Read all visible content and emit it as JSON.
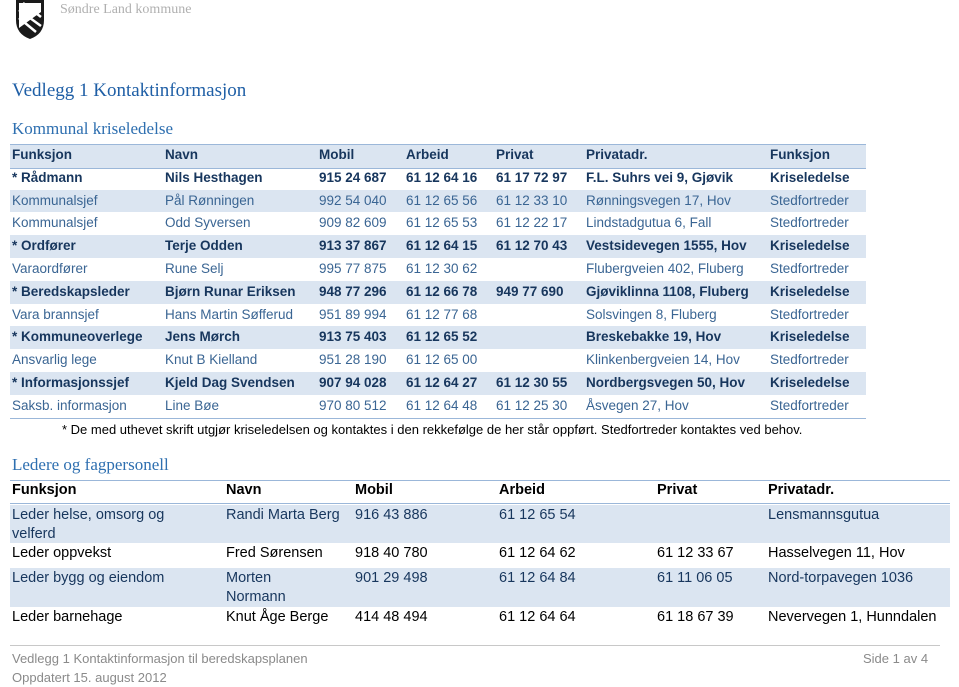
{
  "header": {
    "org": "Søndre Land kommune"
  },
  "title": "Vedlegg 1 Kontaktinformasjon",
  "crisis": {
    "heading": "Kommunal kriseledelse",
    "columns": [
      "Funksjon",
      "Navn",
      "Mobil",
      "Arbeid",
      "Privat",
      "Privatadr.",
      "Funksjon"
    ],
    "rows": [
      [
        "* Rådmann",
        "Nils Hesthagen",
        "915 24 687",
        "61 12 64 16",
        "61 17 72 97",
        "F.L. Suhrs vei 9, Gjøvik",
        "Kriseledelse"
      ],
      [
        "Kommunalsjef",
        "Pål Rønningen",
        "992 54 040",
        "61 12 65 56",
        "61 12 33 10",
        "Rønningsvegen 17, Hov",
        "Stedfortreder"
      ],
      [
        "Kommunalsjef",
        "Odd Syversen",
        "909 82 609",
        "61 12 65 53",
        "61 12 22 17",
        "Lindstadgutua 6, Fall",
        "Stedfortreder"
      ],
      [
        "* Ordfører",
        "Terje Odden",
        "913 37 867",
        "61 12 64 15",
        "61 12 70 43",
        "Vestsidevegen 1555, Hov",
        "Kriseledelse"
      ],
      [
        "Varaordfører",
        "Rune Selj",
        "995 77 875",
        "61 12 30 62",
        null,
        "Flubergveien 402, Fluberg",
        "Stedfortreder"
      ],
      [
        "* Beredskapsleder",
        "Bjørn Runar Eriksen",
        "948 77 296",
        "61 12 66 78",
        "949 77 690",
        "Gjøviklinna 1108, Fluberg",
        "Kriseledelse"
      ],
      [
        "Vara brannsjef",
        "Hans Martin Søfferud",
        "951 89 994",
        "61 12 77 68",
        null,
        "Solsvingen 8, Fluberg",
        "Stedfortreder"
      ],
      [
        "* Kommuneoverlege",
        "Jens Mørch",
        "913 75 403",
        "61 12 65 52",
        null,
        "Breskebakke 19, Hov",
        "Kriseledelse"
      ],
      [
        "Ansvarlig lege",
        "Knut B Kielland",
        "951 28 190",
        "61 12 65 00",
        null,
        "Klinkenbergveien 14, Hov",
        "Stedfortreder"
      ],
      [
        "* Informasjonssjef",
        "Kjeld Dag Svendsen",
        "907 94 028",
        "61 12 64 27",
        "61 12 30 55",
        "Nordbergsvegen 50, Hov",
        "Kriseledelse"
      ],
      [
        "Saksb. informasjon",
        "Line Bøe",
        "970 80 512",
        "61 12 64 48",
        "61 12 25 30",
        "Åsvegen 27, Hov",
        "Stedfortreder"
      ]
    ],
    "note": "* De med uthevet skrift utgjør kriseledelsen og kontaktes i den rekkefølge de her står oppført. Stedfortreder kontaktes ved behov."
  },
  "leaders": {
    "heading": "Ledere og fagpersonell",
    "columns": [
      "Funksjon",
      "Navn",
      "Mobil",
      "Arbeid",
      "Privat",
      "Privatadr."
    ],
    "rows": [
      [
        "Leder helse, omsorg og velferd",
        "Randi Marta Berg",
        "916 43 886",
        "61 12 65 54",
        null,
        "Lensmannsgutua"
      ],
      [
        "Leder oppvekst",
        "Fred Sørensen",
        "918 40 780",
        "61 12 64 62",
        "61 12 33 67",
        "Hasselvegen 11, Hov"
      ],
      [
        "Leder bygg og eiendom",
        "Morten Normann",
        "901 29 498",
        "61 12 64 84",
        "61 11 06 05",
        "Nord-torpavegen 1036"
      ],
      [
        "Leder barnehage",
        "Knut Åge Berge",
        "414 48 494",
        "61 12 64 64",
        "61 18 67 39",
        "Nevervegen 1, Hunndalen"
      ]
    ]
  },
  "footer": {
    "left": "Vedlegg 1 Kontaktinformasjon til beredskapsplanen",
    "page": "Side 1 av 4",
    "updated": "Oppdatert 15. august 2012"
  }
}
